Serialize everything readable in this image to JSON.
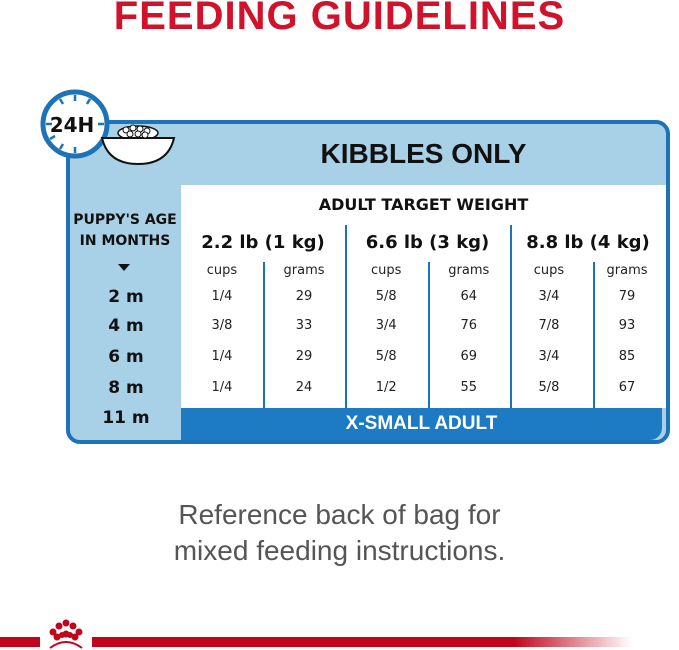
{
  "title": "FEEDING GUIDELINES",
  "clock_label": "24H",
  "table_title": "KIBBLES ONLY",
  "target_header": "ADULT TARGET WEIGHT",
  "age_header": "PUPPY'S AGE IN MONTHS",
  "weights": [
    "2.2 lb (1 kg)",
    "6.6 lb (3 kg)",
    "8.8 lb (4 kg)"
  ],
  "units": [
    "cups",
    "grams"
  ],
  "ages": [
    "2 m",
    "4 m",
    "6 m",
    "8 m",
    "11 m"
  ],
  "rows": [
    [
      "1/4",
      "29",
      "5/8",
      "64",
      "3/4",
      "79"
    ],
    [
      "3/8",
      "33",
      "3/4",
      "76",
      "7/8",
      "93"
    ],
    [
      "1/4",
      "29",
      "5/8",
      "69",
      "3/4",
      "85"
    ],
    [
      "1/4",
      "24",
      "1/2",
      "55",
      "5/8",
      "67"
    ]
  ],
  "footer": "X-SMALL ADULT",
  "note": [
    "Reference back of bag for",
    "mixed feeding instructions."
  ],
  "colors": {
    "brand_red": "#d0122a",
    "blue": "#1d72b8",
    "light_blue": "#a8d0e6"
  },
  "logo": "royal-canin-crown"
}
